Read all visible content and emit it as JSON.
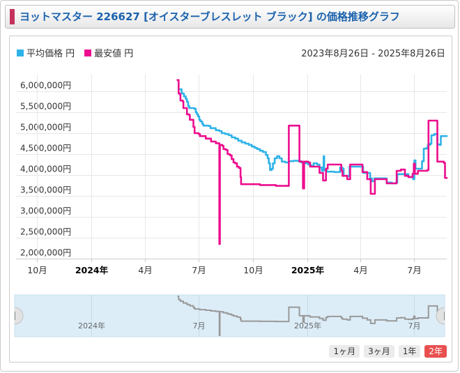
{
  "header": {
    "title": "ヨットマスター 226627 [オイスターブレスレット ブラック] の価格推移グラフ"
  },
  "colors": {
    "title_text": "#1a62ad",
    "title_accent": "#c5315d",
    "average_line": "#2eb2e8",
    "minimum_line": "#ec0c8e",
    "grid": "#e7e7e7",
    "axis_line": "#cccccc",
    "axis_label": "#333333",
    "navigator_bg": "#dcedf8",
    "navigator_line": "#999999",
    "navigator_label": "#666666",
    "button_bg": "#ebebeb",
    "button_selected_bg": "#e85050"
  },
  "legend": [
    {
      "name": "average",
      "label": "平均価格 円",
      "color": "#2eb2e8"
    },
    {
      "name": "minimum",
      "label": "最安値 円",
      "color": "#ec0c8e"
    }
  ],
  "date_range": "2023年8月26日 - 2025年8月26日",
  "range_buttons": [
    {
      "label": "1ヶ月",
      "selected": false
    },
    {
      "label": "3ヶ月",
      "selected": false
    },
    {
      "label": "1年",
      "selected": false
    },
    {
      "label": "2年",
      "selected": true
    }
  ],
  "chart_data": {
    "type": "line",
    "title": "ヨットマスター 226627 [オイスターブレスレット ブラック] の価格推移グラフ",
    "x_axis": {
      "start_date": "2023-08-26",
      "end_date": "2025-08-26",
      "total_days": 731,
      "ticks": [
        {
          "day": 36,
          "label": "10月",
          "bold": false
        },
        {
          "day": 128,
          "label": "2024年",
          "bold": true
        },
        {
          "day": 219,
          "label": "4月",
          "bold": false
        },
        {
          "day": 310,
          "label": "7月",
          "bold": false
        },
        {
          "day": 402,
          "label": "10月",
          "bold": false
        },
        {
          "day": 494,
          "label": "2025年",
          "bold": true
        },
        {
          "day": 584,
          "label": "4月",
          "bold": false
        },
        {
          "day": 675,
          "label": "7月",
          "bold": false
        }
      ]
    },
    "y_axis": {
      "unit": "円",
      "min": 2000000,
      "max": 6500000,
      "tick_interval": 500000,
      "tick_values": [
        6000000,
        5500000,
        5000000,
        4500000,
        4000000,
        3500000,
        3000000,
        2500000,
        2000000
      ]
    },
    "legend_position": "top-left",
    "grid": true,
    "series": [
      {
        "name": "平均価格",
        "color": "#2eb2e8",
        "points": [
          [
            277,
            6050000
          ],
          [
            281,
            5950000
          ],
          [
            285,
            5880000
          ],
          [
            288,
            5820000
          ],
          [
            290,
            5750000
          ],
          [
            292,
            5650000
          ],
          [
            294,
            5600000
          ],
          [
            303,
            5580000
          ],
          [
            305,
            5500000
          ],
          [
            307,
            5450000
          ],
          [
            309,
            5400000
          ],
          [
            311,
            5320000
          ],
          [
            313,
            5280000
          ],
          [
            316,
            5220000
          ],
          [
            318,
            5180000
          ],
          [
            327,
            5170000
          ],
          [
            330,
            5120000
          ],
          [
            336,
            5120000
          ],
          [
            339,
            5070000
          ],
          [
            345,
            5050000
          ],
          [
            349,
            5000000
          ],
          [
            355,
            4980000
          ],
          [
            361,
            4950000
          ],
          [
            366,
            4900000
          ],
          [
            372,
            4870000
          ],
          [
            377,
            4820000
          ],
          [
            383,
            4780000
          ],
          [
            389,
            4750000
          ],
          [
            395,
            4720000
          ],
          [
            400,
            4680000
          ],
          [
            405,
            4650000
          ],
          [
            409,
            4620000
          ],
          [
            414,
            4580000
          ],
          [
            419,
            4550000
          ],
          [
            424,
            4480000
          ],
          [
            427,
            4400000
          ],
          [
            429,
            4280000
          ],
          [
            431,
            4120000
          ],
          [
            434,
            4150000
          ],
          [
            436,
            4280000
          ],
          [
            439,
            4400000
          ],
          [
            443,
            4450000
          ],
          [
            447,
            4400000
          ],
          [
            451,
            4320000
          ],
          [
            457,
            4300000
          ],
          [
            463,
            4330000
          ],
          [
            471,
            4340000
          ],
          [
            479,
            4330000
          ],
          [
            484,
            4300000
          ],
          [
            490,
            4280000
          ],
          [
            496,
            4250000
          ],
          [
            500,
            4220000
          ],
          [
            505,
            4280000
          ],
          [
            511,
            4250000
          ],
          [
            515,
            4180000
          ],
          [
            519,
            4100000
          ],
          [
            522,
            4450000
          ],
          [
            523,
            4120000
          ],
          [
            527,
            4080000
          ],
          [
            540,
            4070000
          ],
          [
            550,
            4180000
          ],
          [
            554,
            4150000
          ],
          [
            556,
            3980000
          ],
          [
            564,
            3970000
          ],
          [
            566,
            4200000
          ],
          [
            586,
            4200000
          ],
          [
            589,
            4050000
          ],
          [
            595,
            4050000
          ],
          [
            601,
            3920000
          ],
          [
            604,
            3850000
          ],
          [
            608,
            3920000
          ],
          [
            627,
            3920000
          ],
          [
            629,
            3820000
          ],
          [
            638,
            3800000
          ],
          [
            645,
            3820000
          ],
          [
            647,
            4020000
          ],
          [
            664,
            4020000
          ],
          [
            666,
            3950000
          ],
          [
            674,
            3900000
          ],
          [
            676,
            4350000
          ],
          [
            678,
            4150000
          ],
          [
            687,
            4150000
          ],
          [
            689,
            4330000
          ],
          [
            692,
            4630000
          ],
          [
            697,
            4650000
          ],
          [
            699,
            4720000
          ],
          [
            703,
            4750000
          ],
          [
            705,
            4950000
          ],
          [
            710,
            4980000
          ],
          [
            713,
            4980000
          ],
          [
            715,
            4730000
          ],
          [
            719,
            4720000
          ],
          [
            721,
            4930000
          ],
          [
            731,
            4930000
          ]
        ]
      },
      {
        "name": "最安値",
        "color": "#ec0c8e",
        "points": [
          [
            274,
            6270000
          ],
          [
            276,
            5950000
          ],
          [
            278,
            5930000
          ],
          [
            279,
            5780000
          ],
          [
            283,
            5760000
          ],
          [
            284,
            5600000
          ],
          [
            289,
            5600000
          ],
          [
            290,
            5450000
          ],
          [
            294,
            5430000
          ],
          [
            295,
            5320000
          ],
          [
            300,
            5320000
          ],
          [
            301,
            5150000
          ],
          [
            303,
            5000000
          ],
          [
            310,
            4980000
          ],
          [
            312,
            4930000
          ],
          [
            320,
            4930000
          ],
          [
            322,
            4870000
          ],
          [
            329,
            4870000
          ],
          [
            331,
            4800000
          ],
          [
            337,
            4800000
          ],
          [
            339,
            4760000
          ],
          [
            344,
            4760000
          ],
          [
            345,
            2350000
          ],
          [
            346,
            4720000
          ],
          [
            350,
            4700000
          ],
          [
            352,
            4620000
          ],
          [
            356,
            4600000
          ],
          [
            359,
            4500000
          ],
          [
            363,
            4470000
          ],
          [
            366,
            4380000
          ],
          [
            369,
            4300000
          ],
          [
            372,
            4280000
          ],
          [
            375,
            4200000
          ],
          [
            378,
            4170000
          ],
          [
            381,
            3950000
          ],
          [
            382,
            3780000
          ],
          [
            412,
            3780000
          ],
          [
            414,
            3760000
          ],
          [
            439,
            3760000
          ],
          [
            441,
            3740000
          ],
          [
            461,
            3740000
          ],
          [
            463,
            5180000
          ],
          [
            480,
            5180000
          ],
          [
            481,
            4320000
          ],
          [
            485,
            4320000
          ],
          [
            487,
            3680000
          ],
          [
            489,
            4320000
          ],
          [
            496,
            4300000
          ],
          [
            499,
            4200000
          ],
          [
            512,
            4200000
          ],
          [
            515,
            4050000
          ],
          [
            520,
            4050000
          ],
          [
            521,
            3870000
          ],
          [
            525,
            3870000
          ],
          [
            526,
            4150000
          ],
          [
            529,
            4250000
          ],
          [
            550,
            4250000
          ],
          [
            552,
            4100000
          ],
          [
            554,
            3980000
          ],
          [
            562,
            3900000
          ],
          [
            566,
            3900000
          ],
          [
            567,
            4250000
          ],
          [
            586,
            4250000
          ],
          [
            588,
            4070000
          ],
          [
            594,
            4070000
          ],
          [
            596,
            3900000
          ],
          [
            601,
            3900000
          ],
          [
            602,
            3550000
          ],
          [
            608,
            3550000
          ],
          [
            609,
            3900000
          ],
          [
            627,
            3900000
          ],
          [
            629,
            3800000
          ],
          [
            644,
            3800000
          ],
          [
            646,
            4100000
          ],
          [
            651,
            4100000
          ],
          [
            653,
            4130000
          ],
          [
            658,
            4130000
          ],
          [
            660,
            3980000
          ],
          [
            666,
            3950000
          ],
          [
            671,
            3950000
          ],
          [
            673,
            4030000
          ],
          [
            675,
            4270000
          ],
          [
            677,
            4030000
          ],
          [
            680,
            4030000
          ],
          [
            682,
            4100000
          ],
          [
            698,
            4120000
          ],
          [
            700,
            5300000
          ],
          [
            714,
            5300000
          ],
          [
            715,
            4320000
          ],
          [
            726,
            4290000
          ],
          [
            728,
            3930000
          ],
          [
            731,
            3930000
          ]
        ]
      }
    ],
    "navigator": {
      "shows_series": "最安値",
      "ticks": [
        {
          "day": 128,
          "label": "2024年"
        },
        {
          "day": 310,
          "label": "7月"
        },
        {
          "day": 494,
          "label": "2025年"
        },
        {
          "day": 675,
          "label": "7月"
        }
      ]
    }
  }
}
